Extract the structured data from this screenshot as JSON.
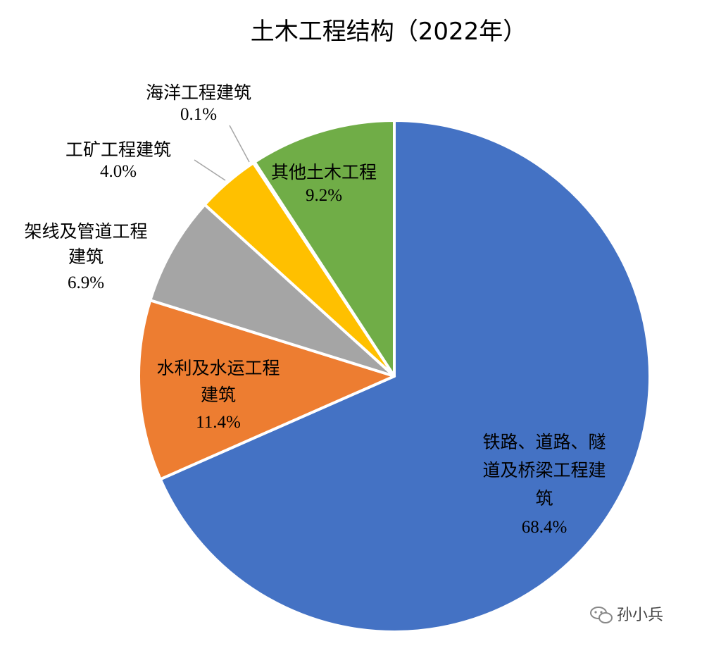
{
  "chart_data": {
    "type": "pie",
    "title": "土木工程结构（2022年）",
    "slices": [
      {
        "label": [
          "铁路、道路、隧",
          "道及桥梁工程建",
          "筑"
        ],
        "value": 68.4,
        "display": "68.4%",
        "color": "#4472C4"
      },
      {
        "label": [
          "水利及水运工程",
          "建筑"
        ],
        "value": 11.4,
        "display": "11.4%",
        "color": "#ED7D31"
      },
      {
        "label": [
          "架线及管道工程",
          "建筑"
        ],
        "value": 6.9,
        "display": "6.9%",
        "color": "#A5A5A5"
      },
      {
        "label": [
          "工矿工程建筑"
        ],
        "value": 4.0,
        "display": "4.0%",
        "color": "#FFC000"
      },
      {
        "label": [
          "海洋工程建筑"
        ],
        "value": 0.1,
        "display": "0.1%",
        "color": "#5B9BD5"
      },
      {
        "label": [
          "其他土木工程"
        ],
        "value": 9.2,
        "display": "9.2%",
        "color": "#70AD47"
      }
    ]
  },
  "watermark": {
    "text": "孙小兵",
    "icon": "wechat-icon"
  }
}
